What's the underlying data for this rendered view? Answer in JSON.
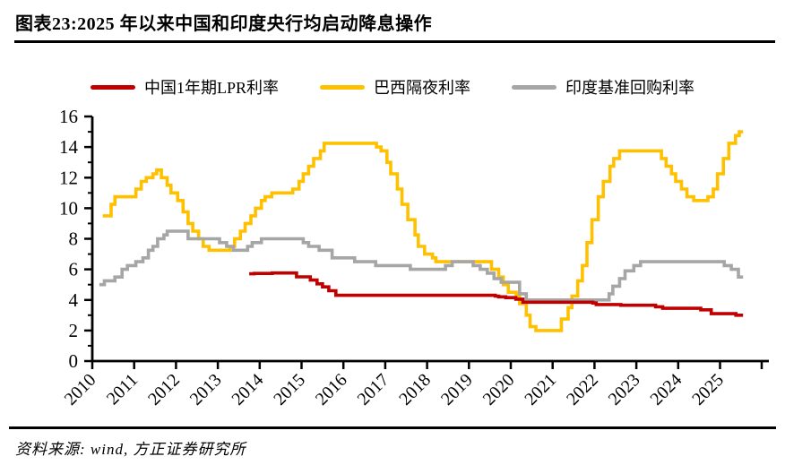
{
  "header": {
    "title": "图表23:2025 年以来中国和印度央行均启动降息操作"
  },
  "footer": {
    "source": "资料来源: wind, 方正证券研究所"
  },
  "chart_data": {
    "type": "line",
    "title": "图表23:2025 年以来中国和印度央行均启动降息操作",
    "xlabel": "",
    "ylabel": "",
    "x_axis": {
      "range": [
        2010,
        2025.65
      ],
      "ticks": [
        2010,
        2011,
        2012,
        2013,
        2014,
        2015,
        2016,
        2017,
        2018,
        2019,
        2020,
        2021,
        2022,
        2023,
        2024,
        2025
      ]
    },
    "y_axis": {
      "range": [
        0,
        16
      ],
      "ticks": [
        0,
        2,
        4,
        6,
        8,
        10,
        12,
        14,
        16
      ],
      "minor_ticks": [
        1,
        3,
        5,
        7,
        9,
        11,
        13,
        15
      ]
    },
    "grid": false,
    "legend_position": "top",
    "series": [
      {
        "name": "中国1年期LPR利率",
        "color": "#c00000",
        "step": true,
        "z": 3,
        "points": [
          [
            2013.75,
            5.71
          ],
          [
            2013.87,
            5.73
          ],
          [
            2014.3,
            5.76
          ],
          [
            2014.88,
            5.51
          ],
          [
            2015.21,
            5.3
          ],
          [
            2015.37,
            5.05
          ],
          [
            2015.5,
            4.85
          ],
          [
            2015.65,
            4.6
          ],
          [
            2015.82,
            4.3
          ],
          [
            2019.63,
            4.25
          ],
          [
            2019.71,
            4.2
          ],
          [
            2019.88,
            4.15
          ],
          [
            2020.12,
            4.05
          ],
          [
            2020.29,
            3.85
          ],
          [
            2021.96,
            3.8
          ],
          [
            2022.04,
            3.7
          ],
          [
            2022.63,
            3.65
          ],
          [
            2023.46,
            3.55
          ],
          [
            2023.63,
            3.45
          ],
          [
            2024.54,
            3.35
          ],
          [
            2024.79,
            3.1
          ],
          [
            2025.38,
            3.0
          ],
          [
            2025.55,
            3.0
          ]
        ]
      },
      {
        "name": "巴西隔夜利率",
        "color": "#ffc000",
        "step": true,
        "z": 1,
        "points": [
          [
            2010.25,
            9.5
          ],
          [
            2010.45,
            10.25
          ],
          [
            2010.54,
            10.75
          ],
          [
            2011.04,
            11.25
          ],
          [
            2011.17,
            11.75
          ],
          [
            2011.29,
            12.0
          ],
          [
            2011.45,
            12.25
          ],
          [
            2011.54,
            12.5
          ],
          [
            2011.65,
            12.0
          ],
          [
            2011.79,
            11.5
          ],
          [
            2011.88,
            11.0
          ],
          [
            2012.04,
            10.5
          ],
          [
            2012.17,
            9.75
          ],
          [
            2012.29,
            9.0
          ],
          [
            2012.4,
            8.5
          ],
          [
            2012.54,
            8.0
          ],
          [
            2012.65,
            7.5
          ],
          [
            2012.79,
            7.25
          ],
          [
            2013.29,
            7.5
          ],
          [
            2013.4,
            8.0
          ],
          [
            2013.54,
            8.5
          ],
          [
            2013.65,
            9.0
          ],
          [
            2013.79,
            9.5
          ],
          [
            2013.9,
            10.0
          ],
          [
            2014.04,
            10.5
          ],
          [
            2014.13,
            10.75
          ],
          [
            2014.29,
            11.0
          ],
          [
            2014.79,
            11.25
          ],
          [
            2014.94,
            11.75
          ],
          [
            2015.04,
            12.25
          ],
          [
            2015.17,
            12.75
          ],
          [
            2015.29,
            13.25
          ],
          [
            2015.45,
            13.75
          ],
          [
            2015.54,
            14.25
          ],
          [
            2016.79,
            14.0
          ],
          [
            2016.9,
            13.75
          ],
          [
            2017.04,
            13.0
          ],
          [
            2017.13,
            12.25
          ],
          [
            2017.29,
            11.25
          ],
          [
            2017.4,
            10.25
          ],
          [
            2017.54,
            9.25
          ],
          [
            2017.71,
            8.25
          ],
          [
            2017.79,
            7.5
          ],
          [
            2017.94,
            7.0
          ],
          [
            2018.13,
            6.75
          ],
          [
            2018.21,
            6.5
          ],
          [
            2019.54,
            6.0
          ],
          [
            2019.71,
            5.5
          ],
          [
            2019.82,
            5.0
          ],
          [
            2019.94,
            4.5
          ],
          [
            2020.13,
            4.25
          ],
          [
            2020.21,
            3.75
          ],
          [
            2020.37,
            3.0
          ],
          [
            2020.46,
            2.25
          ],
          [
            2020.6,
            2.0
          ],
          [
            2021.21,
            2.75
          ],
          [
            2021.37,
            3.5
          ],
          [
            2021.46,
            4.25
          ],
          [
            2021.6,
            5.25
          ],
          [
            2021.71,
            6.25
          ],
          [
            2021.82,
            7.75
          ],
          [
            2021.94,
            9.25
          ],
          [
            2022.09,
            10.75
          ],
          [
            2022.21,
            11.75
          ],
          [
            2022.37,
            12.75
          ],
          [
            2022.46,
            13.25
          ],
          [
            2022.6,
            13.75
          ],
          [
            2023.6,
            13.25
          ],
          [
            2023.71,
            12.75
          ],
          [
            2023.84,
            12.25
          ],
          [
            2023.94,
            11.75
          ],
          [
            2024.08,
            11.25
          ],
          [
            2024.21,
            10.75
          ],
          [
            2024.37,
            10.5
          ],
          [
            2024.71,
            10.75
          ],
          [
            2024.84,
            11.25
          ],
          [
            2024.94,
            12.25
          ],
          [
            2025.08,
            13.25
          ],
          [
            2025.21,
            14.25
          ],
          [
            2025.37,
            14.75
          ],
          [
            2025.46,
            15.0
          ],
          [
            2025.55,
            15.0
          ]
        ]
      },
      {
        "name": "印度基准回购利率",
        "color": "#a6a6a6",
        "step": true,
        "z": 2,
        "points": [
          [
            2010.17,
            5.0
          ],
          [
            2010.29,
            5.25
          ],
          [
            2010.54,
            5.5
          ],
          [
            2010.71,
            6.0
          ],
          [
            2010.84,
            6.25
          ],
          [
            2011.04,
            6.5
          ],
          [
            2011.21,
            6.75
          ],
          [
            2011.34,
            7.25
          ],
          [
            2011.45,
            7.5
          ],
          [
            2011.56,
            8.0
          ],
          [
            2011.71,
            8.25
          ],
          [
            2011.79,
            8.5
          ],
          [
            2012.29,
            8.0
          ],
          [
            2013.04,
            7.75
          ],
          [
            2013.21,
            7.5
          ],
          [
            2013.37,
            7.25
          ],
          [
            2013.71,
            7.5
          ],
          [
            2013.82,
            7.75
          ],
          [
            2014.04,
            8.0
          ],
          [
            2015.04,
            7.75
          ],
          [
            2015.17,
            7.5
          ],
          [
            2015.42,
            7.25
          ],
          [
            2015.73,
            6.75
          ],
          [
            2016.27,
            6.5
          ],
          [
            2016.77,
            6.25
          ],
          [
            2017.6,
            6.0
          ],
          [
            2018.44,
            6.25
          ],
          [
            2018.6,
            6.5
          ],
          [
            2019.1,
            6.25
          ],
          [
            2019.27,
            6.0
          ],
          [
            2019.44,
            5.75
          ],
          [
            2019.6,
            5.4
          ],
          [
            2019.77,
            5.15
          ],
          [
            2020.21,
            4.4
          ],
          [
            2020.37,
            4.0
          ],
          [
            2022.35,
            4.4
          ],
          [
            2022.44,
            4.9
          ],
          [
            2022.6,
            5.4
          ],
          [
            2022.73,
            5.9
          ],
          [
            2022.94,
            6.25
          ],
          [
            2023.1,
            6.5
          ],
          [
            2025.1,
            6.25
          ],
          [
            2025.27,
            6.0
          ],
          [
            2025.44,
            5.5
          ],
          [
            2025.55,
            5.5
          ]
        ]
      }
    ]
  }
}
